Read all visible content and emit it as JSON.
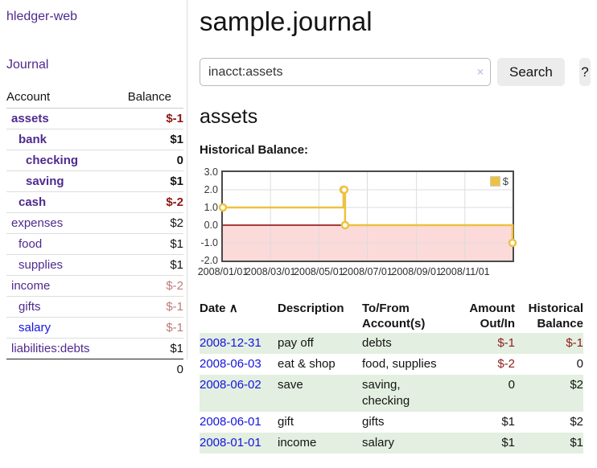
{
  "sidebar": {
    "brand": "hledger-web",
    "nav": {
      "journal": "Journal"
    },
    "accounts_table": {
      "headers": {
        "account": "Account",
        "balance": "Balance"
      },
      "rows": [
        {
          "name": "assets",
          "depth": 1,
          "bold": true,
          "link": "purple",
          "balance": "$-1",
          "bal_style": "neg-strong"
        },
        {
          "name": "bank",
          "depth": 2,
          "bold": true,
          "link": "purple",
          "balance": "$1",
          "bal_style": "pos"
        },
        {
          "name": "checking",
          "depth": 3,
          "bold": true,
          "link": "purple",
          "balance": "0",
          "bal_style": "pos"
        },
        {
          "name": "saving",
          "depth": 3,
          "bold": true,
          "link": "purple",
          "balance": "$1",
          "bal_style": "pos"
        },
        {
          "name": "cash",
          "depth": 2,
          "bold": true,
          "link": "purple",
          "balance": "$-2",
          "bal_style": "neg-strong"
        },
        {
          "name": "expenses",
          "depth": 1,
          "bold": false,
          "link": "purple",
          "balance": "$2",
          "bal_style": "pos"
        },
        {
          "name": "food",
          "depth": 2,
          "bold": false,
          "link": "purple",
          "balance": "$1",
          "bal_style": "pos"
        },
        {
          "name": "supplies",
          "depth": 2,
          "bold": false,
          "link": "purple",
          "balance": "$1",
          "bal_style": "pos"
        },
        {
          "name": "income",
          "depth": 1,
          "bold": false,
          "link": "purple",
          "balance": "$-2",
          "bal_style": "neg-soft"
        },
        {
          "name": "gifts",
          "depth": 2,
          "bold": false,
          "link": "purple",
          "balance": "$-1",
          "bal_style": "neg-soft"
        },
        {
          "name": "salary",
          "depth": 2,
          "bold": false,
          "link": "blue",
          "balance": "$-1",
          "bal_style": "neg-soft"
        },
        {
          "name": "liabilities:debts",
          "depth": 1,
          "bold": false,
          "link": "purple",
          "balance": "$1",
          "bal_style": "pos"
        }
      ],
      "total": "0"
    }
  },
  "header": {
    "title": "sample.journal"
  },
  "search": {
    "value": "inacct:assets",
    "clear_icon": "×",
    "button": "Search",
    "help_button": "?"
  },
  "account_page": {
    "title": "assets",
    "chart_label": "Historical Balance:"
  },
  "chart_data": {
    "type": "line",
    "title": "Historical Balance",
    "step": true,
    "legend": "$",
    "legend_position": "top-right",
    "grid": true,
    "series": [
      {
        "name": "$",
        "color": "#edc240",
        "points": [
          {
            "date": "2008-01-01",
            "day": 0,
            "value": 1
          },
          {
            "date": "2008-06-01",
            "day": 152,
            "value": 2
          },
          {
            "date": "2008-06-02",
            "day": 153,
            "value": 2
          },
          {
            "date": "2008-06-03",
            "day": 154,
            "value": 0
          },
          {
            "date": "2008-12-31",
            "day": 365,
            "value": -1
          }
        ]
      }
    ],
    "x_ticks": [
      {
        "label": "2008/01/01",
        "day": 0
      },
      {
        "label": "2008/03/01",
        "day": 60
      },
      {
        "label": "2008/05/01",
        "day": 121
      },
      {
        "label": "2008/07/01",
        "day": 182
      },
      {
        "label": "2008/09/01",
        "day": 244
      },
      {
        "label": "2008/11/01",
        "day": 305
      }
    ],
    "x_range_days": [
      0,
      365
    ],
    "y_ticks": [
      "3.0",
      "2.0",
      "1.0",
      "0.0",
      "-1.0",
      "-2.0"
    ],
    "ylim": [
      -2,
      3
    ],
    "negative_fill": "#fcdada",
    "zero_line_color": "#8b0000",
    "gridline_color": "#dcdcdc"
  },
  "register": {
    "columns": {
      "date": "Date",
      "sort_icon": "∧",
      "description": "Description",
      "accounts": "To/From Account(s)",
      "amount": "Amount Out/In",
      "balance": "Historical Balance"
    },
    "rows": [
      {
        "date": "2008-12-31",
        "description": "pay off",
        "accounts": "debts",
        "amount": "$-1",
        "amount_neg": true,
        "balance": "$-1",
        "balance_neg": true
      },
      {
        "date": "2008-06-03",
        "description": "eat & shop",
        "accounts": "food, supplies",
        "amount": "$-2",
        "amount_neg": true,
        "balance": "0",
        "balance_neg": false
      },
      {
        "date": "2008-06-02",
        "description": "save",
        "accounts": "saving, checking",
        "amount": "0",
        "amount_neg": false,
        "balance": "$2",
        "balance_neg": false
      },
      {
        "date": "2008-06-01",
        "description": "gift",
        "accounts": "gifts",
        "amount": "$1",
        "amount_neg": false,
        "balance": "$2",
        "balance_neg": false
      },
      {
        "date": "2008-01-01",
        "description": "income",
        "accounts": "salary",
        "amount": "$1",
        "amount_neg": false,
        "balance": "$1",
        "balance_neg": false
      }
    ]
  }
}
